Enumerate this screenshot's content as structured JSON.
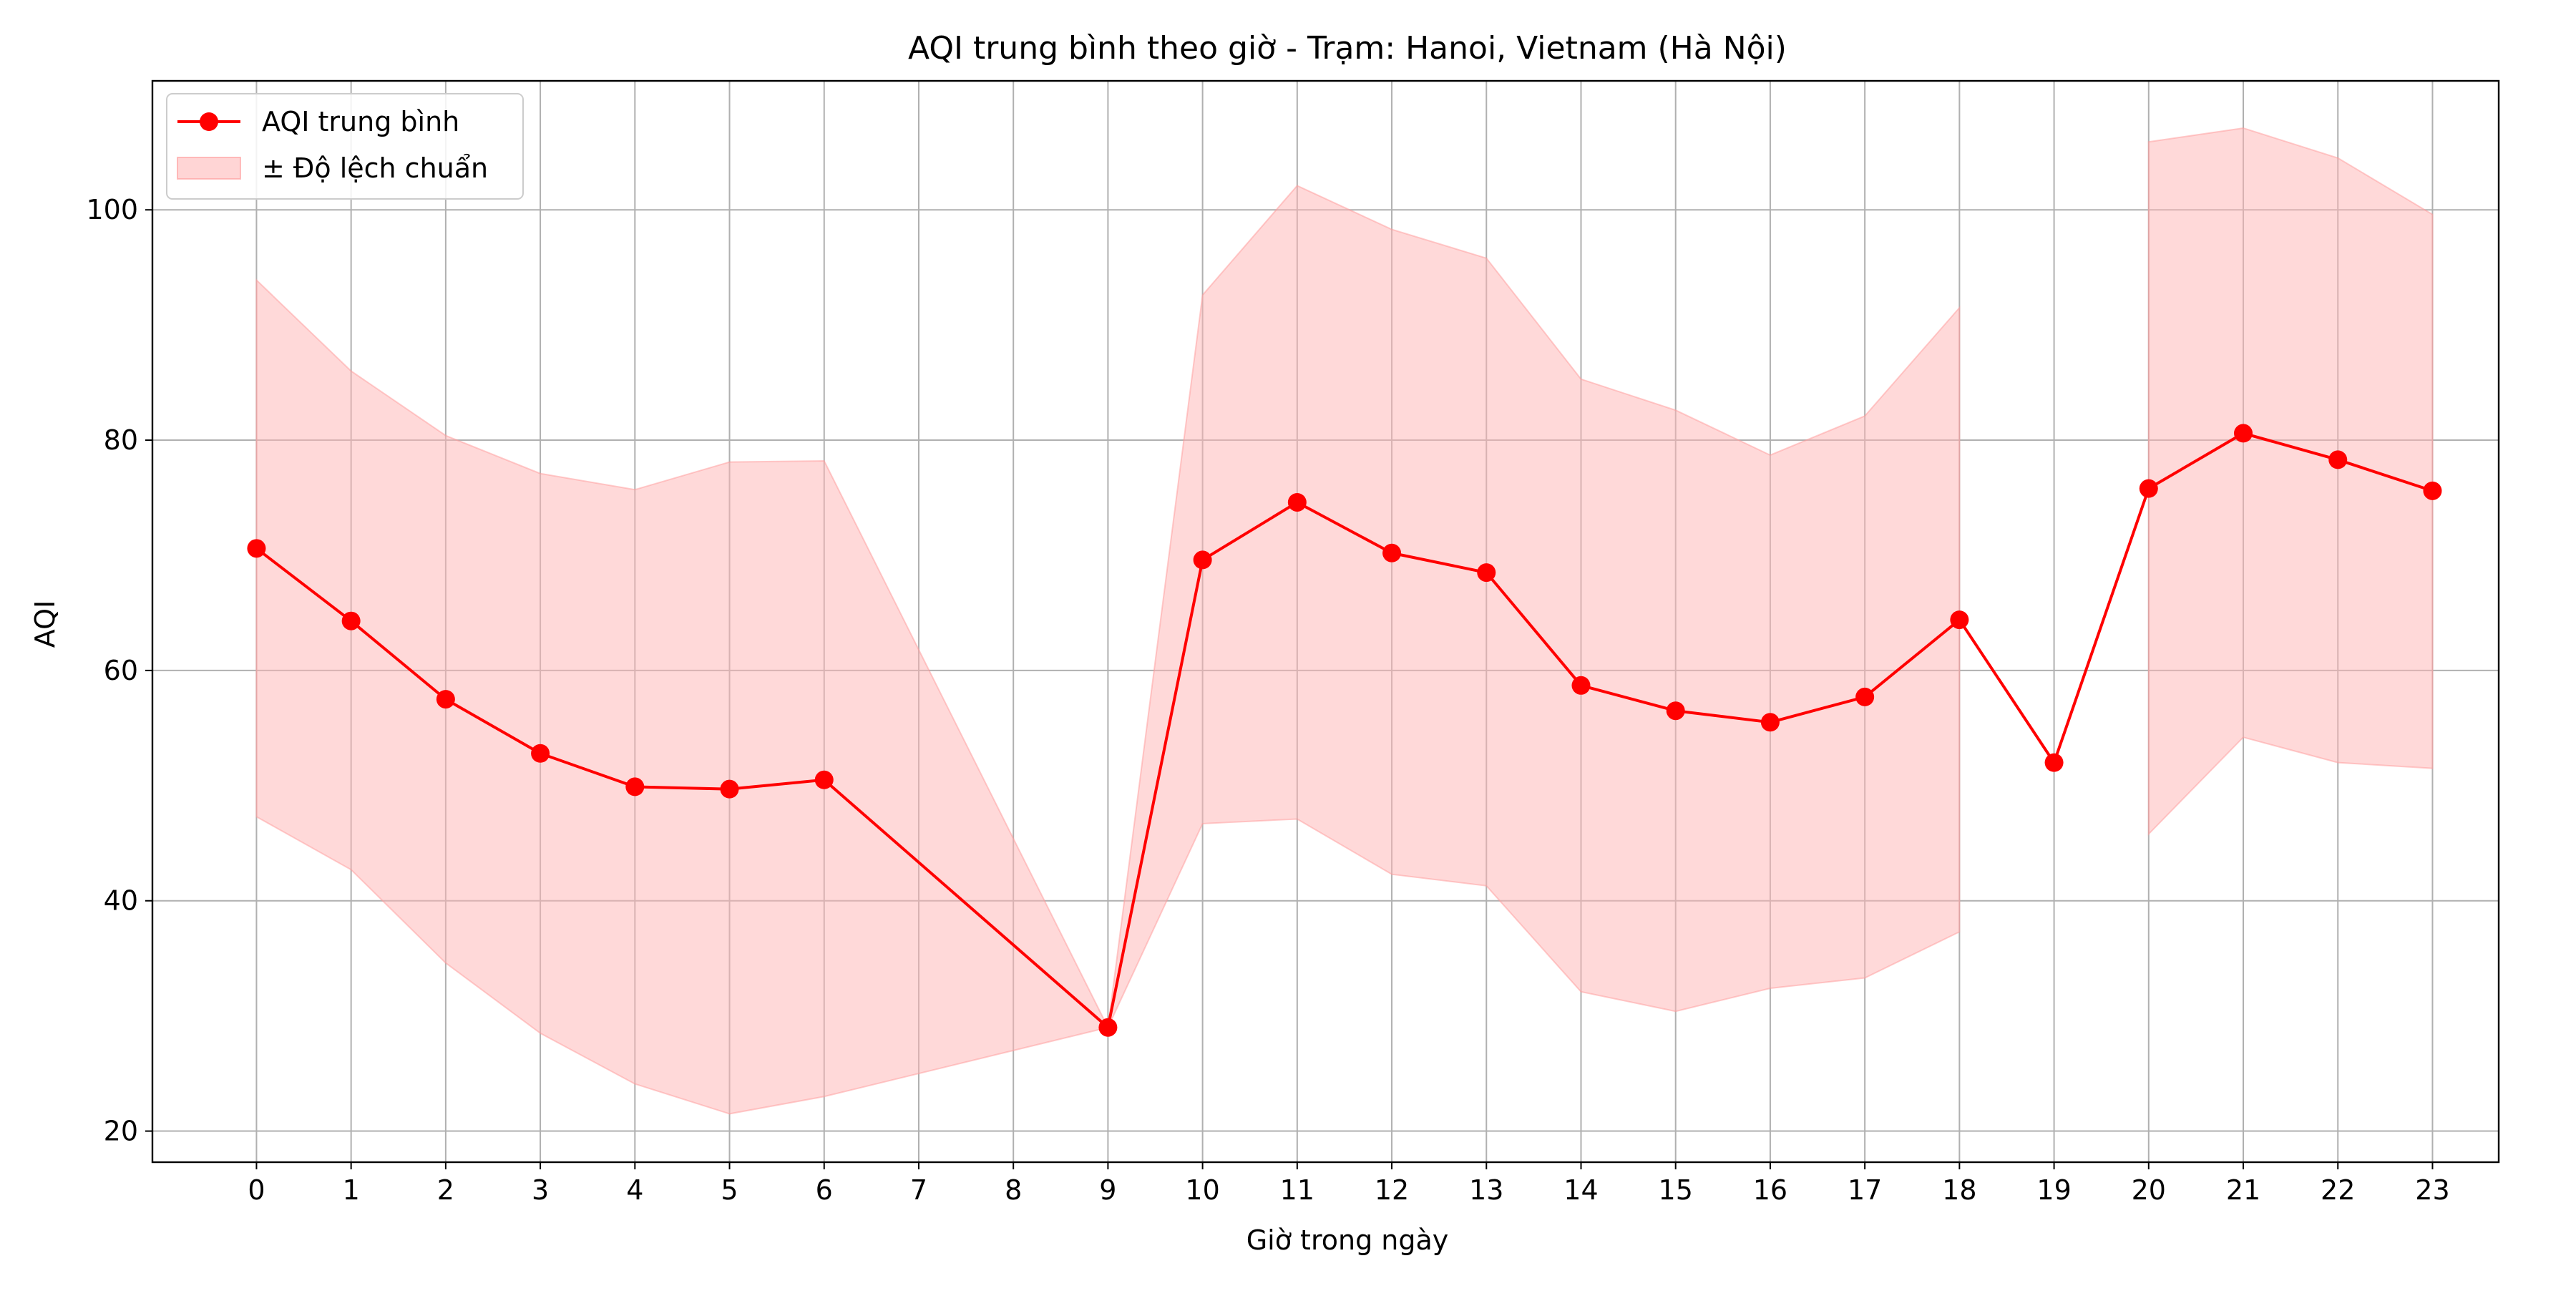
{
  "chart_data": {
    "type": "line",
    "title": "AQI trung bình theo giờ - Trạm: Hanoi, Vietnam (Hà Nội)",
    "xlabel": "Giờ trong ngày",
    "ylabel": "AQI",
    "x": [
      0,
      1,
      2,
      3,
      4,
      5,
      6,
      9,
      10,
      11,
      12,
      13,
      14,
      15,
      16,
      17,
      18,
      19,
      20,
      21,
      22,
      23
    ],
    "x_ticks": [
      "0",
      "1",
      "2",
      "3",
      "4",
      "5",
      "6",
      "7",
      "8",
      "9",
      "10",
      "11",
      "12",
      "13",
      "14",
      "15",
      "16",
      "17",
      "18",
      "19",
      "20",
      "21",
      "22",
      "23"
    ],
    "xlim": [
      -1.1,
      23.7
    ],
    "ylim": [
      17.3,
      111.2
    ],
    "y_ticks": [
      "20",
      "40",
      "60",
      "80",
      "100"
    ],
    "grid": true,
    "legend_position": "top-left",
    "series": [
      {
        "name": "AQI trung bình",
        "color": "#ff0000",
        "marker": "circle",
        "values": [
          70.6,
          64.3,
          57.5,
          52.8,
          49.9,
          49.7,
          50.5,
          29.0,
          69.6,
          74.6,
          70.2,
          68.5,
          58.7,
          56.5,
          55.5,
          57.7,
          64.4,
          52.0,
          75.8,
          80.6,
          78.3,
          75.6
        ]
      }
    ],
    "band": {
      "name": "± Độ lệch chuẩn",
      "color": "#ffb3b3",
      "segments": [
        {
          "x": [
            0,
            1,
            2,
            3,
            4,
            5,
            6,
            9,
            10,
            11,
            12,
            13,
            14,
            15,
            16,
            17,
            18
          ],
          "upper": [
            93.9,
            86.0,
            80.4,
            77.1,
            75.7,
            78.1,
            78.2,
            29.0,
            92.6,
            102.1,
            98.3,
            95.8,
            85.3,
            82.6,
            78.7,
            82.1,
            91.5
          ],
          "lower": [
            47.3,
            42.7,
            34.6,
            28.5,
            24.1,
            21.5,
            23.0,
            29.0,
            46.7,
            47.1,
            42.3,
            41.3,
            32.1,
            30.4,
            32.4,
            33.3,
            37.3
          ]
        },
        {
          "x": [
            20,
            21,
            22,
            23
          ],
          "upper": [
            105.9,
            107.1,
            104.5,
            99.6
          ],
          "lower": [
            45.8,
            54.2,
            52.0,
            51.5
          ]
        }
      ]
    },
    "legend": {
      "line_label": "AQI trung bình",
      "band_label": "± Độ lệch chuẩn"
    }
  }
}
